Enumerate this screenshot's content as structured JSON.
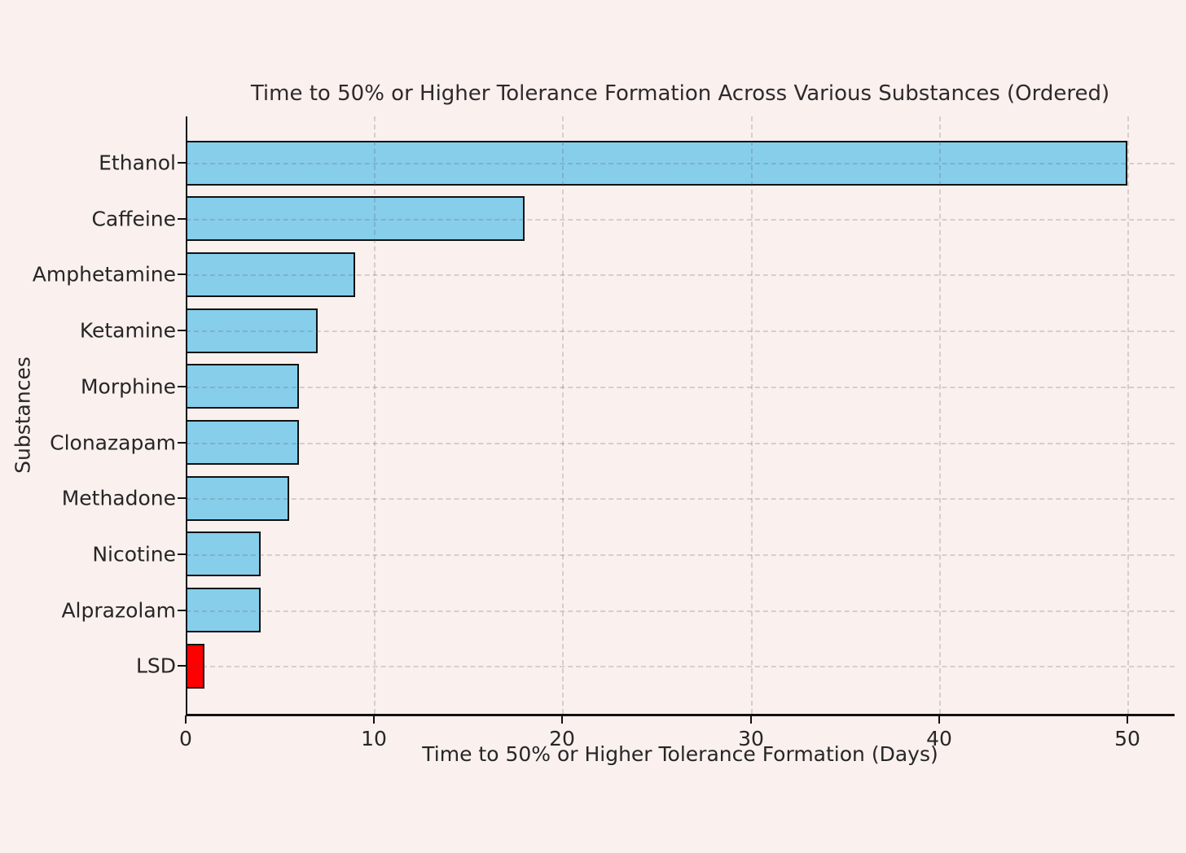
{
  "chart_data": {
    "type": "bar",
    "orientation": "horizontal",
    "title": "Time to 50% or Higher Tolerance Formation Across Various Substances (Ordered)",
    "xlabel": "Time to 50% or Higher Tolerance Formation (Days)",
    "ylabel": "Substances",
    "categories": [
      "Ethanol",
      "Caffeine",
      "Amphetamine",
      "Ketamine",
      "Morphine",
      "Clonazapam",
      "Methadone",
      "Nicotine",
      "Alprazolam",
      "LSD"
    ],
    "values": [
      50,
      18,
      9,
      7,
      6,
      6,
      5.5,
      4,
      4,
      1
    ],
    "bar_colors": [
      "#87CEEB",
      "#87CEEB",
      "#87CEEB",
      "#87CEEB",
      "#87CEEB",
      "#87CEEB",
      "#87CEEB",
      "#87CEEB",
      "#87CEEB",
      "#FF0000"
    ],
    "x_ticks": [
      0,
      10,
      20,
      30,
      40,
      50
    ],
    "xlim": [
      0,
      52.5
    ],
    "grid": "dashed-over-bars",
    "legend": "none",
    "colors": {
      "background": "#FAF0EE",
      "bar_default": "#87CEEB",
      "bar_highlight": "#FF0000",
      "bar_edge": "#111111",
      "grid": "#CFC5C5",
      "spine": "#111111",
      "text": "#262626"
    }
  }
}
